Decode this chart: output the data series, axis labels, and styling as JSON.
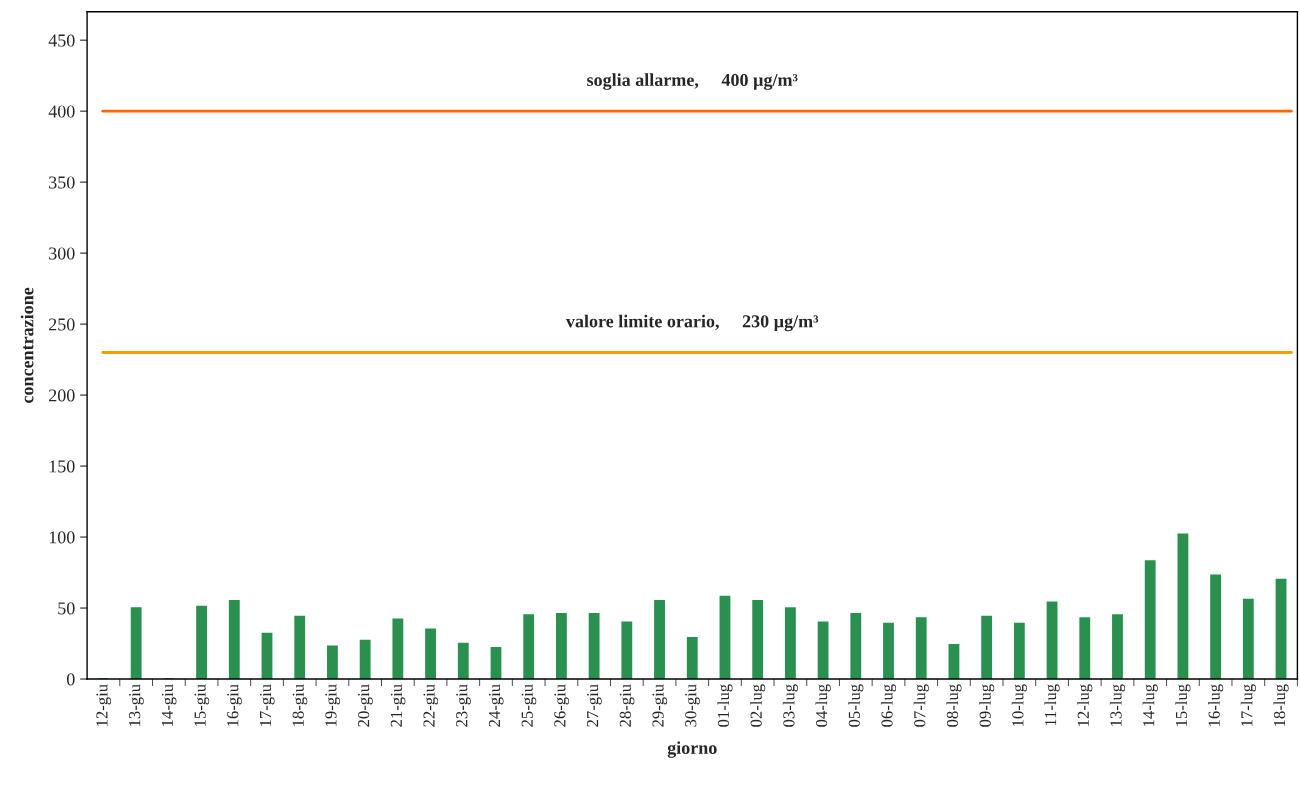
{
  "chart_data": {
    "type": "bar",
    "xlabel": "giorno",
    "ylabel": "concentrazione",
    "categories": [
      "12-giu",
      "13-giu",
      "14-giu",
      "15-giu",
      "16-giu",
      "17-giu",
      "18-giu",
      "19-giu",
      "20-giu",
      "21-giu",
      "22-giu",
      "23-giu",
      "24-giu",
      "25-giu",
      "26-giu",
      "27-giu",
      "28-giu",
      "29-giu",
      "30-giu",
      "01-lug",
      "02-lug",
      "03-lug",
      "04-lug",
      "05-lug",
      "06-lug",
      "07-lug",
      "08-lug",
      "09-lug",
      "10-lug",
      "11-lug",
      "12-lug",
      "13-lug",
      "14-lug",
      "15-lug",
      "16-lug",
      "17-lug",
      "18-lug"
    ],
    "values": [
      0,
      50,
      0,
      51,
      55,
      32,
      44,
      23,
      27,
      42,
      35,
      25,
      22,
      45,
      46,
      46,
      40,
      55,
      29,
      58,
      55,
      50,
      40,
      46,
      39,
      43,
      24,
      44,
      39,
      54,
      43,
      45,
      83,
      102,
      73,
      56,
      70
    ],
    "color": "#2a9050",
    "ylim": [
      0,
      470
    ],
    "yticks": [
      0,
      50,
      100,
      150,
      200,
      250,
      300,
      350,
      400,
      450
    ],
    "grid": false,
    "ref_lines": [
      {
        "axis": "y",
        "value": 400,
        "label": "soglia allarme,     400 µg/m³",
        "color": "#ff6600"
      },
      {
        "axis": "y",
        "value": 230,
        "label": "valore limite orario,     230 µg/m³",
        "color": "#ff9900"
      }
    ]
  }
}
